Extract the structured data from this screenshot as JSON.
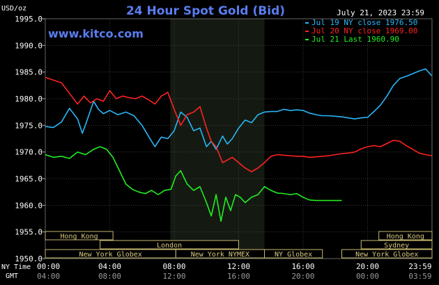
{
  "chart_data": {
    "type": "line",
    "title": "24 Hour Spot Gold (Bid)",
    "website": "www.kitco.com",
    "timestamp": "July 21, 2023 23:59",
    "ylabel": "USD/oz",
    "ylim": [
      1950,
      1995
    ],
    "yticks": [
      "1995.0",
      "1990.0",
      "1985.0",
      "1980.0",
      "1975.0",
      "1970.0",
      "1965.0",
      "1960.0",
      "1955.0",
      "1950.0"
    ],
    "ytick_values": [
      1995,
      1990,
      1985,
      1980,
      1975,
      1970,
      1965,
      1960,
      1955,
      1950
    ],
    "xlim": [
      0,
      24
    ],
    "ny_time_label": "NY Time",
    "gmt_label": "GMT",
    "xticks_ny": [
      "00:00",
      "04:00",
      "08:00",
      "12:00",
      "16:00",
      "20:00",
      "23:59"
    ],
    "xticks_gmt": [
      "04:00",
      "08:00",
      "12:00",
      "16:00",
      "20:00",
      "00:00",
      "03:59"
    ],
    "xtick_hours": [
      0,
      4,
      8,
      12,
      16,
      20,
      23.98
    ],
    "highlight_range": [
      7.75,
      13.6
    ],
    "grid": true,
    "legend_position": "top-right",
    "series": [
      {
        "name": "Jul 19 NY close 1976.50",
        "color": "#29b6f6",
        "x": [
          0,
          0.5,
          1,
          1.5,
          2,
          2.3,
          2.6,
          3,
          3.3,
          3.6,
          4,
          4.5,
          5,
          5.5,
          6,
          6.4,
          6.8,
          7.2,
          7.6,
          8,
          8.4,
          8.8,
          9.2,
          9.6,
          10,
          10.3,
          10.6,
          11,
          11.3,
          11.6,
          12,
          12.4,
          12.8,
          13.2,
          13.6,
          14,
          14.4,
          14.8,
          15.2,
          15.6,
          16,
          16.4,
          16.8,
          17.2,
          17.6,
          18,
          18.4,
          18.8,
          19.2,
          19.6,
          20,
          20.4,
          20.8,
          21.2,
          21.6,
          22,
          22.4,
          22.8,
          23.2,
          23.6,
          23.98
        ],
        "y": [
          1974.8,
          1974.6,
          1975.6,
          1978.2,
          1976.2,
          1973.5,
          1976.0,
          1979.5,
          1978.0,
          1977.2,
          1977.8,
          1977.0,
          1977.5,
          1976.8,
          1975.0,
          1973.0,
          1971.0,
          1972.8,
          1972.5,
          1974.0,
          1977.5,
          1976.5,
          1974.0,
          1974.5,
          1971.0,
          1972.0,
          1970.5,
          1973.0,
          1971.5,
          1972.5,
          1974.5,
          1976.0,
          1975.5,
          1977.0,
          1977.5,
          1977.6,
          1977.6,
          1978.0,
          1977.8,
          1977.9,
          1977.8,
          1977.3,
          1977.0,
          1976.8,
          1976.8,
          1976.7,
          1976.6,
          1976.4,
          1976.2,
          1976.4,
          1976.5,
          1977.6,
          1978.8,
          1980.5,
          1982.5,
          1983.8,
          1984.2,
          1984.7,
          1985.2,
          1985.6,
          1984.3
        ]
      },
      {
        "name": "Jul 20 NY close 1969.00",
        "color": "#ff2222",
        "x": [
          0,
          0.5,
          1,
          1.5,
          2,
          2.4,
          2.8,
          3.2,
          3.6,
          4,
          4.4,
          4.8,
          5.2,
          5.6,
          6,
          6.4,
          6.8,
          7.2,
          7.6,
          8,
          8.4,
          8.8,
          9.2,
          9.6,
          10,
          10.3,
          10.6,
          11,
          11.3,
          11.6,
          12,
          12.4,
          12.8,
          13.2,
          13.6,
          14,
          14.4,
          14.8,
          15.2,
          15.6,
          16,
          16.4,
          16.8,
          17.2,
          17.6,
          18,
          18.4,
          18.8,
          19.2,
          19.6,
          20,
          20.4,
          20.8,
          21.2,
          21.6,
          22,
          22.4,
          22.8,
          23.2,
          23.6,
          23.98
        ],
        "y": [
          1984.0,
          1983.5,
          1983.0,
          1981.0,
          1979.0,
          1980.5,
          1979.2,
          1980.0,
          1979.5,
          1981.5,
          1980.0,
          1980.5,
          1980.2,
          1980.0,
          1980.5,
          1979.8,
          1979.0,
          1980.5,
          1981.2,
          1978.0,
          1975.0,
          1977.0,
          1977.5,
          1978.5,
          1974.5,
          1972.0,
          1971.0,
          1968.0,
          1968.5,
          1969.0,
          1968.0,
          1967.0,
          1966.3,
          1967.0,
          1968.0,
          1969.2,
          1969.5,
          1969.4,
          1969.3,
          1969.2,
          1969.2,
          1969.0,
          1969.1,
          1969.2,
          1969.3,
          1969.5,
          1969.7,
          1969.8,
          1970.0,
          1970.6,
          1971.0,
          1971.2,
          1971.0,
          1971.6,
          1972.2,
          1972.0,
          1971.2,
          1970.5,
          1969.8,
          1969.5,
          1969.3
        ]
      },
      {
        "name": "Jul 21 Last 1960.90",
        "color": "#22ee22",
        "x": [
          0,
          0.5,
          1,
          1.5,
          2,
          2.5,
          3,
          3.4,
          3.8,
          4.2,
          4.6,
          5,
          5.4,
          5.8,
          6.2,
          6.6,
          7,
          7.4,
          7.8,
          8.1,
          8.4,
          8.8,
          9.2,
          9.6,
          10,
          10.3,
          10.6,
          10.9,
          11.2,
          11.5,
          11.8,
          12.1,
          12.4,
          12.8,
          13.2,
          13.6,
          14,
          14.4,
          14.8,
          15.2,
          15.6,
          16,
          16.4,
          16.8,
          17.2,
          17.6,
          18,
          18.4
        ],
        "y": [
          1969.5,
          1969.0,
          1969.2,
          1968.8,
          1970.0,
          1969.5,
          1970.5,
          1971.0,
          1970.5,
          1969.0,
          1966.5,
          1964.0,
          1963.0,
          1962.5,
          1962.2,
          1962.8,
          1962.0,
          1962.8,
          1963.0,
          1965.5,
          1966.5,
          1964.0,
          1962.8,
          1963.5,
          1960.5,
          1958.0,
          1962.0,
          1957.0,
          1961.5,
          1959.0,
          1962.0,
          1961.5,
          1960.5,
          1961.5,
          1962.0,
          1963.5,
          1962.8,
          1962.3,
          1962.2,
          1962.0,
          1962.2,
          1961.5,
          1961.0,
          1960.9,
          1960.9,
          1960.9,
          1960.9,
          1960.9
        ]
      }
    ],
    "sessions": [
      {
        "label": "Hong Kong",
        "start": 0,
        "end": 4.2
      },
      {
        "label": "London",
        "start": 3.4,
        "end": 12
      },
      {
        "label": "New York Globex",
        "start": 0,
        "end": 8.1
      },
      {
        "label": "New York NYMEX",
        "start": 8.1,
        "end": 13.6
      },
      {
        "label": "NY Globex",
        "start": 13.6,
        "end": 17.2
      },
      {
        "label": "Hong Kong",
        "start": 20.7,
        "end": 24
      },
      {
        "label": "Sydney",
        "start": 19.6,
        "end": 24
      },
      {
        "label": "New York Globex",
        "start": 18.4,
        "end": 24
      }
    ]
  }
}
